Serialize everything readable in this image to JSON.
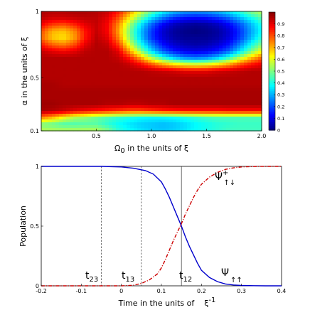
{
  "chart_data": [
    {
      "type": "heatmap",
      "xlabel_main": "Ω",
      "xlabel_sub": "0",
      "xlabel_rest": " in the units of ξ",
      "ylabel": "α in the units of ξ",
      "xlim": [
        0,
        2.0
      ],
      "ylim": [
        0.1,
        1
      ],
      "x_ticks": [
        {
          "value": 0.5,
          "label": "0.5"
        },
        {
          "value": 1.0,
          "label": "1.0"
        },
        {
          "value": 1.5,
          "label": "1.5"
        },
        {
          "value": 2.0,
          "label": "2.0"
        }
      ],
      "y_ticks": [
        {
          "value": 0.1,
          "label": "0.1"
        },
        {
          "value": 0.5,
          "label": "0.5"
        },
        {
          "value": 1,
          "label": "1"
        }
      ],
      "colorbar": {
        "range": [
          0,
          1
        ],
        "colormap": "jet",
        "ticks": [
          {
            "value": 0,
            "label": "0"
          },
          {
            "value": 0.1,
            "label": "0.1"
          },
          {
            "value": 0.2,
            "label": "0.2"
          },
          {
            "value": 0.3,
            "label": "0.3"
          },
          {
            "value": 0.4,
            "label": "0.4"
          },
          {
            "value": 0.5,
            "label": "0.5"
          },
          {
            "value": 0.6,
            "label": "0.6"
          },
          {
            "value": 0.7,
            "label": "0.7"
          },
          {
            "value": 0.8,
            "label": "0.8"
          },
          {
            "value": 0.9,
            "label": "0.9"
          }
        ]
      },
      "x": [
        0.0,
        0.1,
        0.2,
        0.3,
        0.4,
        0.5,
        0.6,
        0.7,
        0.8,
        0.9,
        1.0,
        1.1,
        1.2,
        1.3,
        1.4,
        1.5,
        1.6,
        1.7,
        1.8,
        1.9,
        2.0
      ],
      "y": [
        0.1,
        0.15,
        0.2,
        0.25,
        0.3,
        0.35,
        0.4,
        0.45,
        0.5,
        0.55,
        0.6,
        0.65,
        0.7,
        0.75,
        0.8,
        0.85,
        0.9,
        0.95,
        1.0
      ],
      "z": [
        [
          0.55,
          0.55,
          0.55,
          0.55,
          0.55,
          0.55,
          0.5,
          0.42,
          0.38,
          0.35,
          0.33,
          0.32,
          0.33,
          0.35,
          0.38,
          0.4,
          0.42,
          0.44,
          0.44,
          0.44,
          0.44
        ],
        [
          0.5,
          0.48,
          0.45,
          0.45,
          0.46,
          0.46,
          0.42,
          0.38,
          0.35,
          0.33,
          0.32,
          0.31,
          0.32,
          0.34,
          0.37,
          0.39,
          0.41,
          0.42,
          0.43,
          0.43,
          0.43
        ],
        [
          0.75,
          0.7,
          0.62,
          0.55,
          0.52,
          0.48,
          0.45,
          0.42,
          0.4,
          0.38,
          0.37,
          0.37,
          0.38,
          0.4,
          0.42,
          0.44,
          0.45,
          0.45,
          0.45,
          0.45,
          0.45
        ],
        [
          0.96,
          0.95,
          0.93,
          0.9,
          0.88,
          0.86,
          0.84,
          0.82,
          0.8,
          0.8,
          0.82,
          0.84,
          0.85,
          0.86,
          0.86,
          0.86,
          0.86,
          0.87,
          0.87,
          0.87,
          0.87
        ],
        [
          0.97,
          0.97,
          0.96,
          0.96,
          0.96,
          0.96,
          0.95,
          0.95,
          0.94,
          0.94,
          0.95,
          0.95,
          0.96,
          0.96,
          0.96,
          0.96,
          0.96,
          0.96,
          0.96,
          0.96,
          0.96
        ],
        [
          0.96,
          0.96,
          0.96,
          0.96,
          0.96,
          0.96,
          0.96,
          0.96,
          0.96,
          0.96,
          0.96,
          0.96,
          0.96,
          0.96,
          0.96,
          0.96,
          0.96,
          0.96,
          0.96,
          0.96,
          0.96
        ],
        [
          0.96,
          0.96,
          0.96,
          0.96,
          0.96,
          0.96,
          0.96,
          0.96,
          0.96,
          0.96,
          0.96,
          0.96,
          0.96,
          0.96,
          0.96,
          0.96,
          0.96,
          0.96,
          0.96,
          0.96,
          0.96
        ],
        [
          0.96,
          0.96,
          0.95,
          0.95,
          0.95,
          0.95,
          0.95,
          0.95,
          0.95,
          0.95,
          0.95,
          0.95,
          0.95,
          0.95,
          0.95,
          0.95,
          0.95,
          0.95,
          0.95,
          0.95,
          0.95
        ],
        [
          0.95,
          0.95,
          0.95,
          0.95,
          0.95,
          0.95,
          0.95,
          0.95,
          0.95,
          0.95,
          0.95,
          0.95,
          0.95,
          0.95,
          0.95,
          0.95,
          0.95,
          0.95,
          0.95,
          0.95,
          0.95
        ],
        [
          0.95,
          0.95,
          0.95,
          0.95,
          0.95,
          0.95,
          0.95,
          0.95,
          0.95,
          0.95,
          0.94,
          0.93,
          0.92,
          0.9,
          0.9,
          0.9,
          0.92,
          0.93,
          0.94,
          0.95,
          0.95
        ],
        [
          0.95,
          0.95,
          0.95,
          0.95,
          0.95,
          0.95,
          0.95,
          0.95,
          0.93,
          0.88,
          0.8,
          0.72,
          0.66,
          0.62,
          0.6,
          0.62,
          0.66,
          0.72,
          0.8,
          0.86,
          0.9
        ],
        [
          0.95,
          0.95,
          0.95,
          0.95,
          0.95,
          0.95,
          0.95,
          0.93,
          0.85,
          0.72,
          0.55,
          0.42,
          0.32,
          0.26,
          0.24,
          0.26,
          0.32,
          0.42,
          0.55,
          0.68,
          0.78
        ],
        [
          0.93,
          0.9,
          0.88,
          0.9,
          0.94,
          0.95,
          0.95,
          0.9,
          0.72,
          0.52,
          0.34,
          0.22,
          0.15,
          0.11,
          0.1,
          0.11,
          0.15,
          0.22,
          0.34,
          0.48,
          0.62
        ],
        [
          0.85,
          0.78,
          0.75,
          0.8,
          0.9,
          0.95,
          0.93,
          0.82,
          0.6,
          0.4,
          0.25,
          0.14,
          0.08,
          0.05,
          0.04,
          0.05,
          0.08,
          0.14,
          0.25,
          0.38,
          0.5
        ],
        [
          0.78,
          0.68,
          0.65,
          0.72,
          0.86,
          0.94,
          0.9,
          0.75,
          0.52,
          0.33,
          0.18,
          0.09,
          0.04,
          0.02,
          0.02,
          0.02,
          0.04,
          0.09,
          0.18,
          0.3,
          0.42
        ],
        [
          0.8,
          0.7,
          0.68,
          0.74,
          0.86,
          0.93,
          0.88,
          0.72,
          0.5,
          0.32,
          0.18,
          0.08,
          0.03,
          0.01,
          0.0,
          0.01,
          0.03,
          0.08,
          0.17,
          0.28,
          0.38
        ],
        [
          0.88,
          0.82,
          0.8,
          0.84,
          0.9,
          0.93,
          0.88,
          0.74,
          0.54,
          0.36,
          0.22,
          0.12,
          0.06,
          0.03,
          0.02,
          0.03,
          0.06,
          0.12,
          0.2,
          0.3,
          0.4
        ],
        [
          0.94,
          0.92,
          0.92,
          0.93,
          0.94,
          0.94,
          0.9,
          0.8,
          0.64,
          0.48,
          0.34,
          0.24,
          0.17,
          0.14,
          0.13,
          0.14,
          0.17,
          0.22,
          0.3,
          0.38,
          0.46
        ],
        [
          0.96,
          0.95,
          0.95,
          0.96,
          0.96,
          0.95,
          0.93,
          0.86,
          0.74,
          0.6,
          0.48,
          0.38,
          0.32,
          0.28,
          0.27,
          0.28,
          0.31,
          0.36,
          0.42,
          0.5,
          0.56
        ]
      ]
    },
    {
      "type": "line",
      "xlabel": "Time in the units of",
      "xlabel_sym": "ξ",
      "xlabel_sup": "-1",
      "ylabel": "Population",
      "xlim": [
        -0.2,
        0.4
      ],
      "ylim": [
        0,
        1
      ],
      "x_ticks": [
        {
          "value": -0.2,
          "label": "-0.2"
        },
        {
          "value": -0.1,
          "label": "-0.1"
        },
        {
          "value": 0,
          "label": "0"
        },
        {
          "value": 0.1,
          "label": "0.1"
        },
        {
          "value": 0.2,
          "label": "0.2"
        },
        {
          "value": 0.3,
          "label": "0.3"
        },
        {
          "value": 0.4,
          "label": "0.4"
        }
      ],
      "y_ticks": [
        {
          "value": 0,
          "label": "0"
        },
        {
          "value": 0.5,
          "label": "0.5"
        },
        {
          "value": 1,
          "label": "1"
        }
      ],
      "series": [
        {
          "color": "#0000cc",
          "dash": "solid",
          "x": [
            -0.2,
            -0.15,
            -0.1,
            -0.05,
            0.0,
            0.03,
            0.06,
            0.08,
            0.1,
            0.11,
            0.12,
            0.13,
            0.14,
            0.15,
            0.16,
            0.17,
            0.18,
            0.19,
            0.2,
            0.22,
            0.24,
            0.26,
            0.28,
            0.3,
            0.33,
            0.36,
            0.4
          ],
          "y": [
            1.0,
            1.0,
            1.0,
            1.0,
            0.995,
            0.985,
            0.965,
            0.935,
            0.87,
            0.81,
            0.74,
            0.66,
            0.58,
            0.5,
            0.41,
            0.33,
            0.26,
            0.19,
            0.13,
            0.07,
            0.035,
            0.015,
            0.007,
            0.003,
            0.001,
            0.0,
            0.0
          ]
        },
        {
          "color": "#cc0000",
          "dash": "dashdot",
          "x": [
            -0.2,
            -0.1,
            0.0,
            0.03,
            0.05,
            0.07,
            0.09,
            0.1,
            0.11,
            0.12,
            0.13,
            0.14,
            0.15,
            0.16,
            0.17,
            0.18,
            0.19,
            0.2,
            0.22,
            0.24,
            0.26,
            0.28,
            0.3,
            0.33,
            0.36,
            0.4
          ],
          "y": [
            0.0,
            0.0,
            0.0,
            0.005,
            0.02,
            0.05,
            0.1,
            0.15,
            0.22,
            0.3,
            0.38,
            0.45,
            0.52,
            0.6,
            0.67,
            0.74,
            0.8,
            0.85,
            0.91,
            0.95,
            0.975,
            0.988,
            0.995,
            0.999,
            1.0,
            1.0
          ]
        }
      ],
      "vlines": [
        {
          "x": -0.05,
          "dash": "dashed"
        },
        {
          "x": 0.05,
          "dash": "dashed"
        },
        {
          "x": 0.15,
          "dash": "solid"
        }
      ],
      "annotations": {
        "t23": {
          "main": "t",
          "sub": "23"
        },
        "t13": {
          "main": "t",
          "sub": "13"
        },
        "t12": {
          "main": "t",
          "sub": "12"
        },
        "psi_plus": {
          "main": "Ψ",
          "sup": "+",
          "sub": "↑↓"
        },
        "psi_up": {
          "main": "Ψ",
          "sub": "↑↑"
        }
      }
    }
  ]
}
